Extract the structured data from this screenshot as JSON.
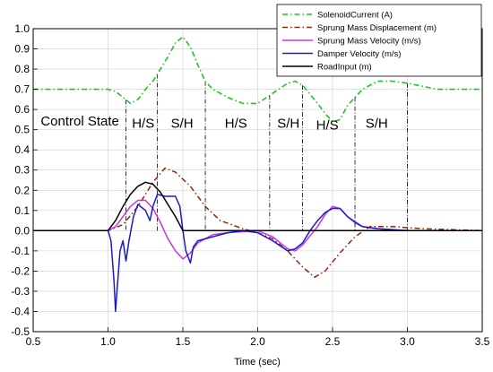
{
  "chart_data": {
    "type": "line",
    "xlabel": "Time (sec)",
    "ylabel": "",
    "xlim": [
      0.5,
      3.5
    ],
    "ylim": [
      -0.5,
      1.0
    ],
    "x_ticks": [
      "0.5",
      "1.0",
      "1.5",
      "2.0",
      "2.5",
      "3.0",
      "3.5"
    ],
    "y_ticks": [
      "-0.5",
      "-0.4",
      "-0.3",
      "-0.2",
      "-0.1",
      "0.0",
      "0.1",
      "0.2",
      "0.3",
      "0.4",
      "0.5",
      "0.6",
      "0.7",
      "0.8",
      "0.9",
      "1.0"
    ],
    "grid": true,
    "legend_position": "top-right",
    "series": [
      {
        "name": "SolenoidCurrent (A)",
        "color": "#22c422",
        "style": "dash-dot",
        "points": [
          [
            0.5,
            0.7
          ],
          [
            0.8,
            0.7
          ],
          [
            1.0,
            0.7
          ],
          [
            1.05,
            0.69
          ],
          [
            1.1,
            0.66
          ],
          [
            1.15,
            0.63
          ],
          [
            1.2,
            0.65
          ],
          [
            1.25,
            0.7
          ],
          [
            1.3,
            0.74
          ],
          [
            1.35,
            0.8
          ],
          [
            1.4,
            0.86
          ],
          [
            1.45,
            0.93
          ],
          [
            1.5,
            0.96
          ],
          [
            1.55,
            0.91
          ],
          [
            1.6,
            0.82
          ],
          [
            1.65,
            0.74
          ],
          [
            1.7,
            0.7
          ],
          [
            1.8,
            0.66
          ],
          [
            1.9,
            0.63
          ],
          [
            2.0,
            0.63
          ],
          [
            2.1,
            0.68
          ],
          [
            2.2,
            0.73
          ],
          [
            2.25,
            0.74
          ],
          [
            2.3,
            0.72
          ],
          [
            2.4,
            0.63
          ],
          [
            2.45,
            0.58
          ],
          [
            2.5,
            0.54
          ],
          [
            2.55,
            0.55
          ],
          [
            2.6,
            0.62
          ],
          [
            2.7,
            0.7
          ],
          [
            2.8,
            0.74
          ],
          [
            2.9,
            0.74
          ],
          [
            3.0,
            0.73
          ],
          [
            3.2,
            0.7
          ],
          [
            3.5,
            0.7
          ]
        ]
      },
      {
        "name": "Sprung Mass Displacement (m)",
        "color": "#8b2a0a",
        "style": "dash-dot",
        "points": [
          [
            0.5,
            0.0
          ],
          [
            1.0,
            0.0
          ],
          [
            1.1,
            0.03
          ],
          [
            1.2,
            0.12
          ],
          [
            1.3,
            0.24
          ],
          [
            1.38,
            0.31
          ],
          [
            1.45,
            0.29
          ],
          [
            1.55,
            0.22
          ],
          [
            1.65,
            0.12
          ],
          [
            1.75,
            0.05
          ],
          [
            1.9,
            0.01
          ],
          [
            2.0,
            -0.01
          ],
          [
            2.1,
            -0.04
          ],
          [
            2.2,
            -0.1
          ],
          [
            2.3,
            -0.18
          ],
          [
            2.38,
            -0.23
          ],
          [
            2.45,
            -0.2
          ],
          [
            2.55,
            -0.11
          ],
          [
            2.65,
            -0.03
          ],
          [
            2.75,
            0.02
          ],
          [
            2.9,
            0.02
          ],
          [
            3.1,
            0.01
          ],
          [
            3.5,
            0.0
          ]
        ]
      },
      {
        "name": "Sprung Mass Velocity (m/s)",
        "color": "#cc33ee",
        "style": "solid",
        "points": [
          [
            0.5,
            0.0
          ],
          [
            1.0,
            0.0
          ],
          [
            1.05,
            0.02
          ],
          [
            1.1,
            0.07
          ],
          [
            1.15,
            0.12
          ],
          [
            1.2,
            0.15
          ],
          [
            1.25,
            0.15
          ],
          [
            1.3,
            0.11
          ],
          [
            1.35,
            0.04
          ],
          [
            1.4,
            -0.04
          ],
          [
            1.45,
            -0.1
          ],
          [
            1.5,
            -0.14
          ],
          [
            1.55,
            -0.11
          ],
          [
            1.6,
            -0.06
          ],
          [
            1.7,
            -0.02
          ],
          [
            1.8,
            -0.01
          ],
          [
            2.0,
            0.0
          ],
          [
            2.1,
            -0.03
          ],
          [
            2.2,
            -0.09
          ],
          [
            2.25,
            -0.1
          ],
          [
            2.3,
            -0.07
          ],
          [
            2.4,
            0.02
          ],
          [
            2.45,
            0.08
          ],
          [
            2.5,
            0.12
          ],
          [
            2.55,
            0.11
          ],
          [
            2.6,
            0.07
          ],
          [
            2.7,
            0.02
          ],
          [
            2.8,
            0.01
          ],
          [
            3.0,
            0.0
          ],
          [
            3.5,
            0.0
          ]
        ]
      },
      {
        "name": "Damper Velocity (m/s)",
        "color": "#1a1acc",
        "style": "solid",
        "points": [
          [
            0.5,
            0.0
          ],
          [
            1.0,
            0.0
          ],
          [
            1.02,
            -0.05
          ],
          [
            1.04,
            -0.25
          ],
          [
            1.05,
            -0.4
          ],
          [
            1.06,
            -0.3
          ],
          [
            1.08,
            -0.1
          ],
          [
            1.1,
            -0.05
          ],
          [
            1.12,
            -0.15
          ],
          [
            1.14,
            -0.05
          ],
          [
            1.17,
            0.07
          ],
          [
            1.2,
            0.13
          ],
          [
            1.25,
            0.1
          ],
          [
            1.28,
            0.05
          ],
          [
            1.3,
            0.12
          ],
          [
            1.33,
            0.18
          ],
          [
            1.38,
            0.17
          ],
          [
            1.45,
            0.17
          ],
          [
            1.48,
            0.12
          ],
          [
            1.5,
            0.0
          ],
          [
            1.52,
            -0.1
          ],
          [
            1.55,
            -0.16
          ],
          [
            1.57,
            -0.08
          ],
          [
            1.6,
            -0.05
          ],
          [
            1.7,
            -0.03
          ],
          [
            1.8,
            -0.01
          ],
          [
            1.9,
            0.0
          ],
          [
            2.0,
            -0.01
          ],
          [
            2.1,
            -0.05
          ],
          [
            2.2,
            -0.1
          ],
          [
            2.25,
            -0.09
          ],
          [
            2.3,
            -0.06
          ],
          [
            2.35,
            0.0
          ],
          [
            2.4,
            0.05
          ],
          [
            2.45,
            0.09
          ],
          [
            2.5,
            0.11
          ],
          [
            2.55,
            0.11
          ],
          [
            2.6,
            0.07
          ],
          [
            2.65,
            0.04
          ],
          [
            2.7,
            0.02
          ],
          [
            2.8,
            0.01
          ],
          [
            3.0,
            0.0
          ],
          [
            3.5,
            0.0
          ]
        ]
      },
      {
        "name": "RoadInput (m)",
        "color": "#000000",
        "style": "solid",
        "points": [
          [
            0.5,
            0.0
          ],
          [
            1.0,
            0.0
          ],
          [
            1.05,
            0.05
          ],
          [
            1.1,
            0.12
          ],
          [
            1.15,
            0.18
          ],
          [
            1.2,
            0.22
          ],
          [
            1.25,
            0.24
          ],
          [
            1.3,
            0.23
          ],
          [
            1.35,
            0.19
          ],
          [
            1.4,
            0.13
          ],
          [
            1.45,
            0.07
          ],
          [
            1.5,
            0.0
          ],
          [
            3.5,
            0.0
          ]
        ]
      }
    ],
    "mode_boundaries": [
      1.12,
      1.33,
      1.65,
      2.08,
      2.3,
      2.65,
      3.0
    ],
    "annotations": [
      {
        "text": "Control State",
        "x": 0.55,
        "y": 0.52
      },
      {
        "text": "H/S",
        "x": 1.16,
        "y": 0.51
      },
      {
        "text": "S/H",
        "x": 1.42,
        "y": 0.51
      },
      {
        "text": "H/S",
        "x": 1.78,
        "y": 0.51
      },
      {
        "text": "S/H",
        "x": 2.13,
        "y": 0.51
      },
      {
        "text": "H/S",
        "x": 2.39,
        "y": 0.5
      },
      {
        "text": "S/H",
        "x": 2.72,
        "y": 0.51
      }
    ]
  }
}
